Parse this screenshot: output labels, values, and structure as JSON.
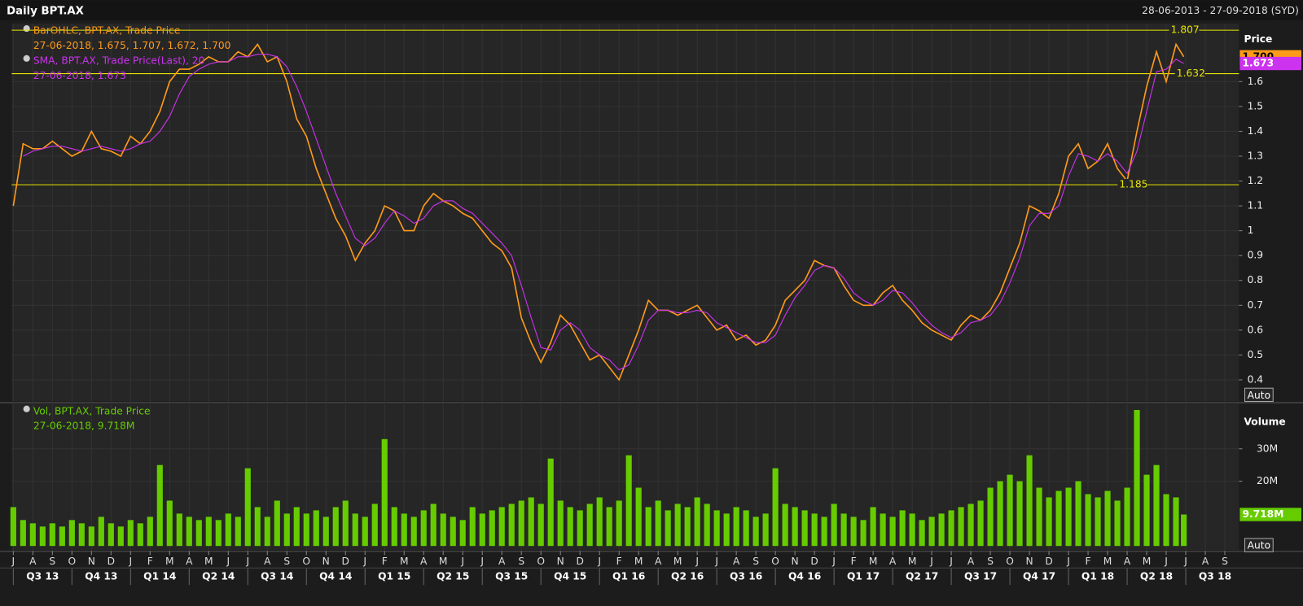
{
  "chart_data": [
    {
      "type": "line",
      "title": "Daily BPT.AX",
      "subtitle": "28-06-2013 - 27-09-2018 (SYD)",
      "y_axis_title": "Price",
      "scale_mode": "Auto",
      "x": [
        0,
        0.5,
        1,
        1.5,
        2,
        2.5,
        3,
        3.5,
        4,
        4.5,
        5,
        5.5,
        6,
        6.5,
        7,
        7.5,
        8,
        8.5,
        9,
        9.5,
        10,
        10.5,
        11,
        11.5,
        12,
        12.5,
        13,
        13.5,
        14,
        14.5,
        15,
        15.5,
        16,
        16.5,
        17,
        17.5,
        18,
        18.5,
        19,
        19.5,
        20,
        20.5,
        21,
        21.5,
        22,
        22.5,
        23,
        23.5,
        24,
        24.5,
        25,
        25.5,
        26,
        26.5,
        27,
        27.5,
        28,
        28.5,
        29,
        29.5,
        30,
        30.5,
        31,
        31.5,
        32,
        32.5,
        33,
        33.5,
        34,
        34.5,
        35,
        35.5,
        36,
        36.5,
        37,
        37.5,
        38,
        38.5,
        39,
        39.5,
        40,
        40.5,
        41,
        41.5,
        42,
        42.5,
        43,
        43.5,
        44,
        44.5,
        45,
        45.5,
        46,
        46.5,
        47,
        47.5,
        48,
        48.5,
        49,
        49.5,
        50,
        50.5,
        51,
        51.5,
        52,
        52.5,
        53,
        53.5,
        54,
        54.5,
        55,
        55.5,
        56,
        56.5,
        57,
        57.5,
        58,
        58.5,
        59,
        59.5,
        59.9
      ],
      "xlim": [
        0,
        62
      ],
      "ylim": [
        0.313,
        1.827
      ],
      "yticks": [
        0.4,
        0.5,
        0.6,
        0.7,
        0.8,
        0.9,
        1,
        1.1,
        1.2,
        1.3,
        1.4,
        1.5,
        1.6
      ],
      "grid": true,
      "hlines": [
        1.807,
        1.632,
        1.185
      ],
      "hline_color": "#e6e600",
      "series": [
        {
          "name": "BarOHLC, BPT.AX, Trade Price",
          "legend_detail": "27-06-2018, 1.675, 1.707, 1.672, 1.700",
          "color": "#ff9a1a",
          "last_label": {
            "value": 1.7,
            "label": "1.700"
          },
          "values": [
            1.1,
            1.35,
            1.33,
            1.33,
            1.36,
            1.33,
            1.3,
            1.32,
            1.4,
            1.33,
            1.32,
            1.3,
            1.38,
            1.35,
            1.4,
            1.48,
            1.6,
            1.65,
            1.65,
            1.67,
            1.7,
            1.68,
            1.68,
            1.72,
            1.7,
            1.75,
            1.68,
            1.7,
            1.6,
            1.45,
            1.38,
            1.25,
            1.15,
            1.05,
            0.98,
            0.88,
            0.95,
            1.0,
            1.1,
            1.08,
            1.0,
            1.0,
            1.1,
            1.15,
            1.12,
            1.1,
            1.07,
            1.05,
            1.0,
            0.95,
            0.92,
            0.85,
            0.65,
            0.55,
            0.47,
            0.55,
            0.66,
            0.62,
            0.55,
            0.48,
            0.5,
            0.45,
            0.4,
            0.5,
            0.6,
            0.72,
            0.68,
            0.68,
            0.66,
            0.68,
            0.7,
            0.65,
            0.6,
            0.62,
            0.56,
            0.58,
            0.54,
            0.56,
            0.62,
            0.72,
            0.76,
            0.8,
            0.88,
            0.86,
            0.85,
            0.78,
            0.72,
            0.7,
            0.7,
            0.75,
            0.78,
            0.72,
            0.68,
            0.63,
            0.6,
            0.58,
            0.56,
            0.62,
            0.66,
            0.64,
            0.68,
            0.75,
            0.85,
            0.95,
            1.1,
            1.08,
            1.05,
            1.15,
            1.3,
            1.35,
            1.25,
            1.28,
            1.35,
            1.25,
            1.2,
            1.4,
            1.58,
            1.72,
            1.6,
            1.75,
            1.7
          ]
        },
        {
          "name": "SMA, BPT.AX, Trade Price(Last),  20",
          "legend_detail": "27-06-2018, 1.673",
          "color": "#cc33ee",
          "last_label": 1.673,
          "values": [
            null,
            1.3,
            1.32,
            1.33,
            1.34,
            1.34,
            1.33,
            1.32,
            1.33,
            1.34,
            1.33,
            1.32,
            1.33,
            1.35,
            1.36,
            1.4,
            1.46,
            1.55,
            1.62,
            1.65,
            1.67,
            1.68,
            1.68,
            1.7,
            1.7,
            1.71,
            1.71,
            1.7,
            1.66,
            1.58,
            1.48,
            1.37,
            1.26,
            1.15,
            1.06,
            0.97,
            0.94,
            0.97,
            1.03,
            1.08,
            1.06,
            1.03,
            1.05,
            1.1,
            1.12,
            1.12,
            1.09,
            1.07,
            1.03,
            0.99,
            0.95,
            0.9,
            0.78,
            0.65,
            0.53,
            0.52,
            0.6,
            0.63,
            0.6,
            0.53,
            0.5,
            0.48,
            0.44,
            0.46,
            0.54,
            0.64,
            0.68,
            0.68,
            0.67,
            0.67,
            0.68,
            0.67,
            0.63,
            0.61,
            0.59,
            0.57,
            0.55,
            0.55,
            0.58,
            0.66,
            0.73,
            0.78,
            0.84,
            0.86,
            0.85,
            0.81,
            0.75,
            0.72,
            0.7,
            0.72,
            0.76,
            0.75,
            0.71,
            0.66,
            0.62,
            0.59,
            0.57,
            0.59,
            0.63,
            0.64,
            0.66,
            0.71,
            0.79,
            0.89,
            1.02,
            1.07,
            1.07,
            1.1,
            1.22,
            1.31,
            1.3,
            1.28,
            1.31,
            1.28,
            1.23,
            1.32,
            1.48,
            1.64,
            1.65,
            1.69,
            1.673
          ]
        }
      ]
    },
    {
      "type": "bar",
      "y_axis_title": "Volume",
      "scale_mode": "Auto",
      "x": [
        0,
        0.5,
        1,
        1.5,
        2,
        2.5,
        3,
        3.5,
        4,
        4.5,
        5,
        5.5,
        6,
        6.5,
        7,
        7.5,
        8,
        8.5,
        9,
        9.5,
        10,
        10.5,
        11,
        11.5,
        12,
        12.5,
        13,
        13.5,
        14,
        14.5,
        15,
        15.5,
        16,
        16.5,
        17,
        17.5,
        18,
        18.5,
        19,
        19.5,
        20,
        20.5,
        21,
        21.5,
        22,
        22.5,
        23,
        23.5,
        24,
        24.5,
        25,
        25.5,
        26,
        26.5,
        27,
        27.5,
        28,
        28.5,
        29,
        29.5,
        30,
        30.5,
        31,
        31.5,
        32,
        32.5,
        33,
        33.5,
        34,
        34.5,
        35,
        35.5,
        36,
        36.5,
        37,
        37.5,
        38,
        38.5,
        39,
        39.5,
        40,
        40.5,
        41,
        41.5,
        42,
        42.5,
        43,
        43.5,
        44,
        44.5,
        45,
        45.5,
        46,
        46.5,
        47,
        47.5,
        48,
        48.5,
        49,
        49.5,
        50,
        50.5,
        51,
        51.5,
        52,
        52.5,
        53,
        53.5,
        54,
        54.5,
        55,
        55.5,
        56,
        56.5,
        57,
        57.5,
        58,
        58.5,
        59,
        59.5,
        59.9
      ],
      "xlim": [
        0,
        62
      ],
      "ylim": [
        0,
        43.6
      ],
      "yticks": [
        {
          "value": 20,
          "label": "20M"
        },
        {
          "value": 30,
          "label": "30M"
        }
      ],
      "grid": true,
      "xticks": [
        {
          "value": 0,
          "label": "J"
        },
        {
          "value": 1,
          "label": "A"
        },
        {
          "value": 2,
          "label": "S"
        },
        {
          "value": 3,
          "label": "O"
        },
        {
          "value": 4,
          "label": "N"
        },
        {
          "value": 5,
          "label": "D"
        },
        {
          "value": 6,
          "label": "J"
        },
        {
          "value": 7,
          "label": "F"
        },
        {
          "value": 8,
          "label": "M"
        },
        {
          "value": 9,
          "label": "A"
        },
        {
          "value": 10,
          "label": "M"
        },
        {
          "value": 11,
          "label": "J"
        },
        {
          "value": 12,
          "label": "J"
        },
        {
          "value": 13,
          "label": "A"
        },
        {
          "value": 14,
          "label": "S"
        },
        {
          "value": 15,
          "label": "O"
        },
        {
          "value": 16,
          "label": "N"
        },
        {
          "value": 17,
          "label": "D"
        },
        {
          "value": 18,
          "label": "J"
        },
        {
          "value": 19,
          "label": "F"
        },
        {
          "value": 20,
          "label": "M"
        },
        {
          "value": 21,
          "label": "A"
        },
        {
          "value": 22,
          "label": "M"
        },
        {
          "value": 23,
          "label": "J"
        },
        {
          "value": 24,
          "label": "J"
        },
        {
          "value": 25,
          "label": "A"
        },
        {
          "value": 26,
          "label": "S"
        },
        {
          "value": 27,
          "label": "O"
        },
        {
          "value": 28,
          "label": "N"
        },
        {
          "value": 29,
          "label": "D"
        },
        {
          "value": 30,
          "label": "J"
        },
        {
          "value": 31,
          "label": "F"
        },
        {
          "value": 32,
          "label": "M"
        },
        {
          "value": 33,
          "label": "A"
        },
        {
          "value": 34,
          "label": "M"
        },
        {
          "value": 35,
          "label": "J"
        },
        {
          "value": 36,
          "label": "J"
        },
        {
          "value": 37,
          "label": "A"
        },
        {
          "value": 38,
          "label": "S"
        },
        {
          "value": 39,
          "label": "O"
        },
        {
          "value": 40,
          "label": "N"
        },
        {
          "value": 41,
          "label": "D"
        },
        {
          "value": 42,
          "label": "J"
        },
        {
          "value": 43,
          "label": "F"
        },
        {
          "value": 44,
          "label": "M"
        },
        {
          "value": 45,
          "label": "A"
        },
        {
          "value": 46,
          "label": "M"
        },
        {
          "value": 47,
          "label": "J"
        },
        {
          "value": 48,
          "label": "J"
        },
        {
          "value": 49,
          "label": "A"
        },
        {
          "value": 50,
          "label": "S"
        },
        {
          "value": 51,
          "label": "O"
        },
        {
          "value": 52,
          "label": "N"
        },
        {
          "value": 53,
          "label": "D"
        },
        {
          "value": 54,
          "label": "J"
        },
        {
          "value": 55,
          "label": "F"
        },
        {
          "value": 56,
          "label": "M"
        },
        {
          "value": 57,
          "label": "A"
        },
        {
          "value": 58,
          "label": "M"
        },
        {
          "value": 59,
          "label": "J"
        },
        {
          "value": 60,
          "label": "J"
        },
        {
          "value": 61,
          "label": "A"
        },
        {
          "value": 62,
          "label": "S"
        }
      ],
      "quarter_ticks": [
        {
          "value": 0,
          "label": "Q3 13"
        },
        {
          "value": 3,
          "label": "Q4 13"
        },
        {
          "value": 6,
          "label": "Q1 14"
        },
        {
          "value": 9,
          "label": "Q2 14"
        },
        {
          "value": 12,
          "label": "Q3 14"
        },
        {
          "value": 15,
          "label": "Q4 14"
        },
        {
          "value": 18,
          "label": "Q1 15"
        },
        {
          "value": 21,
          "label": "Q2 15"
        },
        {
          "value": 24,
          "label": "Q3 15"
        },
        {
          "value": 27,
          "label": "Q4 15"
        },
        {
          "value": 30,
          "label": "Q1 16"
        },
        {
          "value": 33,
          "label": "Q2 16"
        },
        {
          "value": 36,
          "label": "Q3 16"
        },
        {
          "value": 39,
          "label": "Q4 16"
        },
        {
          "value": 42,
          "label": "Q1 17"
        },
        {
          "value": 45,
          "label": "Q2 17"
        },
        {
          "value": 48,
          "label": "Q3 17"
        },
        {
          "value": 51,
          "label": "Q4 17"
        },
        {
          "value": 54,
          "label": "Q1 18"
        },
        {
          "value": 57,
          "label": "Q2 18"
        },
        {
          "value": 60,
          "label": "Q3 18"
        }
      ],
      "series": [
        {
          "name": "Vol, BPT.AX, Trade Price",
          "legend_detail": "27-06-2018, 9.718M",
          "color": "#66cc00",
          "last_label": {
            "value": 9.718,
            "label": "9.718M"
          },
          "values": [
            12,
            8,
            7,
            6,
            7,
            6,
            8,
            7,
            6,
            9,
            7,
            6,
            8,
            7,
            9,
            25,
            14,
            10,
            9,
            8,
            9,
            8,
            10,
            9,
            24,
            12,
            9,
            14,
            10,
            12,
            10,
            11,
            9,
            12,
            14,
            10,
            9,
            13,
            33,
            12,
            10,
            9,
            11,
            13,
            10,
            9,
            8,
            12,
            10,
            11,
            12,
            13,
            14,
            15,
            13,
            27,
            14,
            12,
            11,
            13,
            15,
            12,
            14,
            28,
            18,
            12,
            14,
            11,
            13,
            12,
            15,
            13,
            11,
            10,
            12,
            11,
            9,
            10,
            24,
            13,
            12,
            11,
            10,
            9,
            13,
            10,
            9,
            8,
            12,
            10,
            9,
            11,
            10,
            8,
            9,
            10,
            11,
            12,
            13,
            14,
            18,
            20,
            22,
            20,
            28,
            18,
            15,
            17,
            18,
            20,
            16,
            15,
            17,
            14,
            18,
            42,
            22,
            25,
            16,
            15,
            9.718
          ]
        }
      ]
    }
  ]
}
